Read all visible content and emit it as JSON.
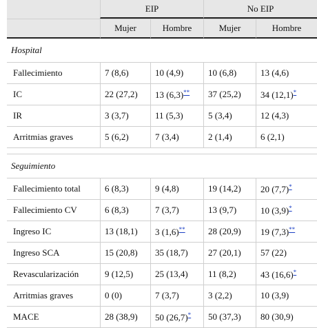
{
  "header": {
    "groups": [
      "EIP",
      "No EIP"
    ],
    "subcols": [
      "Mujer",
      "Hombre",
      "Mujer",
      "Hombre"
    ]
  },
  "hospital": {
    "title": "Hospital",
    "rows": [
      {
        "label": "Fallecimiento",
        "v": [
          "7 (8,6)",
          "10 (4,9)",
          "10 (6,8)",
          "13 (4,6)"
        ],
        "m": [
          "",
          "",
          "",
          ""
        ]
      },
      {
        "label": "IC",
        "v": [
          "22 (27,2)",
          "13 (6,3)",
          "37 (25,2)",
          "34 (12,1)"
        ],
        "m": [
          "",
          "**",
          "",
          "*"
        ]
      },
      {
        "label": "IR",
        "v": [
          "3 (3,7)",
          "11 (5,3)",
          "5 (3,4)",
          "12 (4,3)"
        ],
        "m": [
          "",
          "",
          "",
          ""
        ]
      },
      {
        "label": "Arritmias graves",
        "v": [
          "5 (6,2)",
          "7 (3,4)",
          "2 (1,4)",
          "6 (2,1)"
        ],
        "m": [
          "",
          "",
          "",
          ""
        ]
      }
    ]
  },
  "seguimiento": {
    "title": "Seguimiento",
    "rows": [
      {
        "label": "Fallecimiento total",
        "v": [
          "6 (8,3)",
          "9 (4,8)",
          "19 (14,2)",
          "20 (7,7)"
        ],
        "m": [
          "",
          "",
          "",
          "*"
        ]
      },
      {
        "label": "Fallecimiento CV",
        "v": [
          "6 (8,3)",
          "7 (3,7)",
          "13 (9,7)",
          "10 (3,9)"
        ],
        "m": [
          "",
          "",
          "",
          "*"
        ]
      },
      {
        "label": "Ingreso IC",
        "v": [
          "13 (18,1)",
          "3 (1,6)",
          "28 (20,9)",
          "19 (7,3)"
        ],
        "m": [
          "",
          "**",
          "",
          "**"
        ]
      },
      {
        "label": "Ingreso SCA",
        "v": [
          "15 (20,8)",
          "35 (18,7)",
          "27 (20,1)",
          "57 (22)"
        ],
        "m": [
          "",
          "",
          "",
          ""
        ]
      },
      {
        "label": "Revascularización",
        "v": [
          "9 (12,5)",
          "25 (13,4)",
          "11 (8,2)",
          "43 (16,6)"
        ],
        "m": [
          "",
          "",
          "",
          "*"
        ]
      },
      {
        "label": "Arritmias graves",
        "v": [
          "0 (0)",
          "7 (3,7)",
          "3 (2,2)",
          "10 (3,9)"
        ],
        "m": [
          "",
          "",
          "",
          ""
        ]
      },
      {
        "label": "MACE",
        "v": [
          "28 (38,9)",
          "50 (26,7)",
          "50 (37,3)",
          "80 (30,9)"
        ],
        "m": [
          "",
          "*",
          "",
          ""
        ]
      }
    ]
  }
}
